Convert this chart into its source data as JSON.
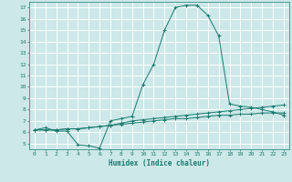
{
  "title": "",
  "xlabel": "Humidex (Indice chaleur)",
  "ylabel": "",
  "bg_color": "#cce8e8",
  "grid_color": "#ffffff",
  "line_color": "#1a7a6e",
  "xlim": [
    -0.5,
    23.5
  ],
  "ylim": [
    4.5,
    17.5
  ],
  "xticks": [
    0,
    1,
    2,
    3,
    4,
    5,
    6,
    7,
    8,
    9,
    10,
    11,
    12,
    13,
    14,
    15,
    16,
    17,
    18,
    19,
    20,
    21,
    22,
    23
  ],
  "yticks": [
    5,
    6,
    7,
    8,
    9,
    10,
    11,
    12,
    13,
    14,
    15,
    16,
    17
  ],
  "series1": [
    6.2,
    6.4,
    6.1,
    6.1,
    4.9,
    4.8,
    4.6,
    7.0,
    7.2,
    7.4,
    10.2,
    12.0,
    15.0,
    17.0,
    17.2,
    17.2,
    16.3,
    14.5,
    8.5,
    8.3,
    8.2,
    8.0,
    7.8,
    7.5
  ],
  "series2": [
    6.2,
    6.2,
    6.2,
    6.3,
    6.3,
    6.4,
    6.5,
    6.6,
    6.8,
    7.0,
    7.1,
    7.2,
    7.3,
    7.4,
    7.5,
    7.6,
    7.7,
    7.8,
    7.9,
    8.0,
    8.1,
    8.2,
    8.3,
    8.4
  ],
  "series3": [
    6.2,
    6.2,
    6.2,
    6.3,
    6.3,
    6.4,
    6.5,
    6.6,
    6.7,
    6.8,
    6.9,
    7.0,
    7.1,
    7.2,
    7.2,
    7.3,
    7.4,
    7.5,
    7.5,
    7.6,
    7.6,
    7.7,
    7.7,
    7.7
  ]
}
